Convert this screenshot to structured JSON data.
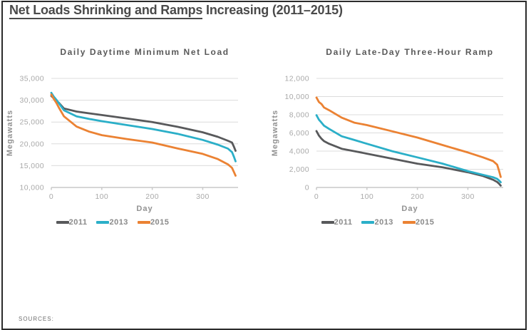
{
  "page": {
    "title_underlined": "Net Loads Shrinking and Ramps",
    "title_rest": " Increasing (2011–2015)",
    "sources_label": "SOURCES:"
  },
  "colors": {
    "series_2011": "#58595B",
    "series_2013": "#2BAFC8",
    "series_2015": "#EB8233",
    "grid": "#DCDCDC",
    "axis": "#C9C9C9",
    "tick_label": "#A9A9A9",
    "axis_title": "#929292",
    "chart_title": "#595959",
    "main_title": "#4A4A4A"
  },
  "chart_data": [
    {
      "type": "line",
      "title": "Daily Daytime Minimum Net Load",
      "xlabel": "Day",
      "ylabel": "Megawatts",
      "xlim": [
        0,
        370
      ],
      "ylim": [
        10000,
        35000
      ],
      "yticks": [
        10000,
        15000,
        20000,
        25000,
        30000,
        35000
      ],
      "xticks": [
        0,
        100,
        200,
        300
      ],
      "grid": true,
      "legend_position": "bottom",
      "x": [
        0,
        5,
        10,
        15,
        25,
        50,
        75,
        100,
        150,
        200,
        250,
        300,
        330,
        350,
        358,
        362,
        365
      ],
      "series": [
        {
          "name": "2011",
          "values": [
            31000,
            30400,
            29900,
            29400,
            28100,
            27400,
            27000,
            26600,
            25800,
            25000,
            23900,
            22650,
            21600,
            20700,
            20300,
            19300,
            18400
          ]
        },
        {
          "name": "2013",
          "values": [
            31700,
            30800,
            30100,
            29300,
            27700,
            26300,
            25700,
            25200,
            24300,
            23400,
            22300,
            20900,
            19800,
            18900,
            18100,
            17000,
            16000
          ]
        },
        {
          "name": "2015",
          "values": [
            31300,
            30300,
            29400,
            28300,
            26300,
            23950,
            22800,
            22000,
            21100,
            20300,
            18950,
            17700,
            16500,
            15300,
            14500,
            13500,
            12700
          ]
        }
      ]
    },
    {
      "type": "line",
      "title": "Daily Late-Day Three-Hour Ramp",
      "xlabel": "Day",
      "ylabel": "Megawatts",
      "xlim": [
        0,
        370
      ],
      "ylim": [
        0,
        12000
      ],
      "yticks": [
        0,
        2000,
        4000,
        6000,
        8000,
        10000,
        12000
      ],
      "xticks": [
        0,
        100,
        200,
        300
      ],
      "grid": true,
      "legend_position": "bottom",
      "x": [
        0,
        5,
        10,
        15,
        25,
        50,
        75,
        100,
        150,
        200,
        250,
        300,
        330,
        350,
        358,
        362,
        365
      ],
      "series": [
        {
          "name": "2011",
          "values": [
            6200,
            5700,
            5360,
            5100,
            4810,
            4260,
            3990,
            3720,
            3170,
            2620,
            2210,
            1670,
            1260,
            850,
            600,
            400,
            200
          ]
        },
        {
          "name": "2013",
          "values": [
            7950,
            7450,
            7130,
            6800,
            6450,
            5630,
            5220,
            4810,
            3990,
            3310,
            2620,
            1800,
            1390,
            1120,
            950,
            750,
            570
          ]
        },
        {
          "name": "2015",
          "values": [
            9900,
            9400,
            9180,
            8800,
            8500,
            7680,
            7130,
            6860,
            6180,
            5490,
            4670,
            3850,
            3310,
            2900,
            2500,
            1800,
            1150
          ]
        }
      ]
    }
  ]
}
